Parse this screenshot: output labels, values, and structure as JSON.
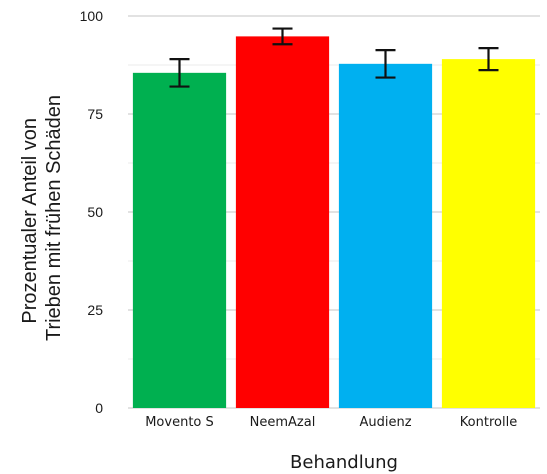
{
  "chart_data": {
    "type": "bar",
    "categories": [
      "Movento S",
      "NeemAzal",
      "Audienz",
      "Kontrolle"
    ],
    "values": [
      85.5,
      94.8,
      87.8,
      89.0
    ],
    "errors": [
      3.5,
      2.0,
      3.5,
      2.8
    ],
    "colors": [
      "#00b050",
      "#ff0000",
      "#00b0f0",
      "#ffff00"
    ],
    "xlabel": "Behandlung",
    "ylabel_lines": [
      "Prozentualer Anteil von",
      "Trieben mit frühen Schäden"
    ],
    "yticks": [
      0,
      25,
      50,
      75,
      100
    ],
    "ylim": [
      0,
      100
    ],
    "grid": true
  }
}
